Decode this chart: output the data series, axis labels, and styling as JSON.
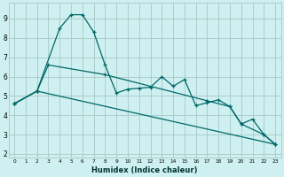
{
  "xlabel": "Humidex (Indice chaleur)",
  "bg_color": "#cff0f0",
  "grid_color": "#a8c8c8",
  "line_color": "#006868",
  "x_ticks": [
    0,
    1,
    2,
    3,
    4,
    5,
    6,
    7,
    8,
    9,
    10,
    11,
    12,
    13,
    14,
    15,
    16,
    17,
    18,
    19,
    20,
    21,
    22,
    23
  ],
  "y_ticks": [
    2,
    3,
    4,
    5,
    6,
    7,
    8,
    9
  ],
  "xlim": [
    -0.5,
    23.5
  ],
  "ylim": [
    1.8,
    9.8
  ],
  "series1_x": [
    0,
    2,
    4,
    5,
    6,
    7,
    8,
    9,
    10,
    11,
    12,
    13,
    14,
    15,
    16,
    17,
    18,
    19,
    20,
    21,
    22,
    23
  ],
  "series1_y": [
    4.6,
    5.25,
    8.5,
    9.2,
    9.2,
    8.3,
    6.6,
    5.15,
    5.35,
    5.4,
    5.45,
    6.0,
    5.5,
    5.85,
    4.5,
    4.65,
    4.8,
    4.45,
    3.55,
    3.8,
    3.0,
    2.5
  ],
  "series2_x": [
    0,
    2,
    3,
    8,
    17,
    19,
    20,
    22,
    23
  ],
  "series2_y": [
    4.6,
    5.25,
    6.6,
    6.1,
    4.75,
    4.45,
    3.55,
    3.0,
    2.5
  ],
  "series3_x": [
    0,
    2,
    23
  ],
  "series3_y": [
    4.6,
    5.25,
    2.5
  ]
}
